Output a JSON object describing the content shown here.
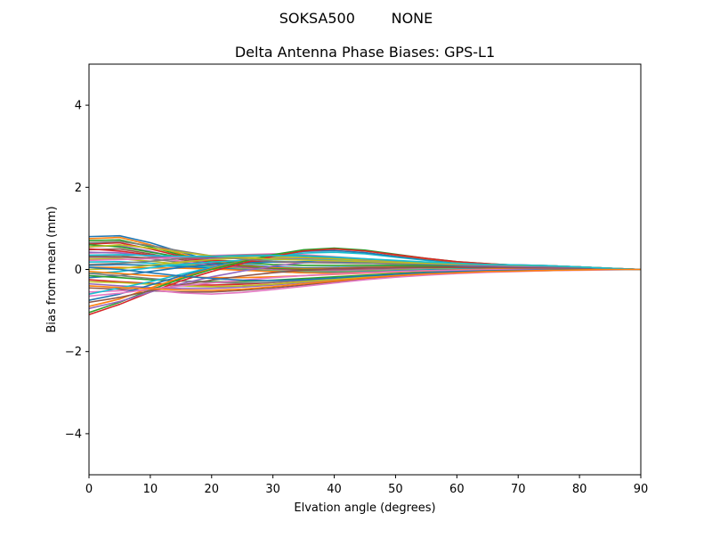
{
  "chart_data": {
    "type": "line",
    "suptitle": "SOKSA500        NONE",
    "title": "Delta Antenna Phase Biases: GPS-L1",
    "xlabel": "Elvation angle (degrees)",
    "ylabel": "Bias from mean (mm)",
    "xlim": [
      0,
      90
    ],
    "ylim": [
      -5,
      5
    ],
    "xticks": [
      0,
      10,
      20,
      30,
      40,
      50,
      60,
      70,
      80,
      90
    ],
    "yticks": [
      -4,
      -2,
      0,
      2,
      4
    ],
    "ytick_labels": [
      "−4",
      "−2",
      "0",
      "2",
      "4"
    ],
    "grid": false,
    "x": [
      0,
      5,
      10,
      15,
      20,
      25,
      30,
      35,
      40,
      45,
      50,
      55,
      60,
      65,
      70,
      75,
      80,
      85,
      90
    ],
    "colors": [
      "#1f77b4",
      "#ff7f0e",
      "#2ca02c",
      "#d62728",
      "#9467bd",
      "#8c564b",
      "#e377c2",
      "#7f7f7f",
      "#bcbd22",
      "#17becf"
    ],
    "series": [
      {
        "values": [
          0.8,
          0.82,
          0.65,
          0.42,
          0.22,
          0.12,
          0.06,
          0.04,
          0.05,
          0.06,
          0.07,
          0.08,
          0.09,
          0.1,
          0.1,
          0.09,
          0.06,
          0.03,
          0.0
        ]
      },
      {
        "values": [
          0.75,
          0.78,
          0.6,
          0.38,
          0.2,
          0.1,
          0.04,
          0.02,
          0.03,
          0.05,
          0.06,
          0.07,
          0.08,
          0.09,
          0.09,
          0.08,
          0.05,
          0.02,
          0.0
        ]
      },
      {
        "values": [
          0.7,
          0.72,
          0.55,
          0.35,
          0.18,
          0.08,
          0.02,
          0.0,
          0.01,
          0.03,
          0.05,
          0.06,
          0.07,
          0.08,
          0.08,
          0.07,
          0.05,
          0.02,
          0.0
        ]
      },
      {
        "values": [
          0.62,
          0.65,
          0.5,
          0.32,
          0.16,
          0.06,
          0.0,
          -0.02,
          -0.01,
          0.01,
          0.03,
          0.05,
          0.06,
          0.07,
          0.07,
          0.06,
          0.04,
          0.02,
          0.0
        ]
      },
      {
        "values": [
          0.55,
          0.58,
          0.44,
          0.28,
          0.14,
          0.05,
          -0.01,
          -0.03,
          -0.02,
          0.0,
          0.02,
          0.04,
          0.05,
          0.06,
          0.06,
          0.05,
          0.04,
          0.02,
          0.0
        ]
      },
      {
        "values": [
          0.48,
          0.5,
          0.38,
          0.24,
          0.12,
          0.04,
          -0.02,
          -0.04,
          -0.03,
          -0.01,
          0.01,
          0.03,
          0.04,
          0.05,
          0.05,
          0.05,
          0.03,
          0.01,
          0.0
        ]
      },
      {
        "values": [
          0.4,
          0.42,
          0.32,
          0.2,
          0.1,
          0.03,
          -0.02,
          -0.05,
          -0.04,
          -0.02,
          0.0,
          0.02,
          0.03,
          0.04,
          0.05,
          0.04,
          0.03,
          0.01,
          0.0
        ]
      },
      {
        "values": [
          0.32,
          0.34,
          0.26,
          0.17,
          0.08,
          0.02,
          -0.03,
          -0.05,
          -0.05,
          -0.03,
          -0.01,
          0.01,
          0.03,
          0.04,
          0.04,
          0.04,
          0.03,
          0.01,
          0.0
        ]
      },
      {
        "values": [
          0.25,
          0.26,
          0.2,
          0.13,
          0.06,
          0.01,
          -0.03,
          -0.06,
          -0.06,
          -0.04,
          -0.02,
          0.0,
          0.02,
          0.03,
          0.04,
          0.03,
          0.02,
          0.01,
          0.0
        ]
      },
      {
        "values": [
          0.18,
          0.19,
          0.15,
          0.1,
          0.05,
          0.0,
          -0.04,
          -0.07,
          -0.07,
          -0.05,
          -0.03,
          -0.01,
          0.01,
          0.02,
          0.03,
          0.03,
          0.02,
          0.01,
          0.0
        ]
      },
      {
        "values": [
          0.1,
          0.12,
          0.1,
          0.07,
          0.03,
          -0.01,
          -0.05,
          -0.08,
          -0.08,
          -0.06,
          -0.04,
          -0.02,
          0.0,
          0.02,
          0.03,
          0.03,
          0.02,
          0.01,
          0.0
        ]
      },
      {
        "values": [
          0.05,
          0.05,
          0.04,
          0.03,
          0.01,
          -0.02,
          -0.05,
          -0.08,
          -0.09,
          -0.07,
          -0.05,
          -0.03,
          -0.01,
          0.01,
          0.02,
          0.02,
          0.02,
          0.01,
          0.0
        ]
      },
      {
        "values": [
          0.6,
          0.55,
          0.42,
          0.3,
          0.22,
          0.16,
          0.12,
          0.1,
          0.1,
          0.1,
          0.1,
          0.1,
          0.1,
          0.09,
          0.08,
          0.07,
          0.05,
          0.02,
          0.0
        ]
      },
      {
        "values": [
          0.5,
          0.45,
          0.35,
          0.27,
          0.22,
          0.2,
          0.18,
          0.17,
          0.16,
          0.15,
          0.14,
          0.13,
          0.12,
          0.11,
          0.1,
          0.08,
          0.06,
          0.03,
          0.0
        ]
      },
      {
        "values": [
          0.42,
          0.4,
          0.32,
          0.28,
          0.27,
          0.28,
          0.28,
          0.26,
          0.24,
          0.21,
          0.18,
          0.15,
          0.13,
          0.12,
          0.1,
          0.09,
          0.06,
          0.03,
          0.0
        ]
      },
      {
        "values": [
          0.3,
          0.3,
          0.28,
          0.29,
          0.3,
          0.32,
          0.34,
          0.32,
          0.28,
          0.24,
          0.2,
          0.17,
          0.14,
          0.12,
          0.11,
          0.09,
          0.06,
          0.03,
          0.0
        ]
      },
      {
        "values": [
          0.22,
          0.24,
          0.26,
          0.3,
          0.34,
          0.36,
          0.38,
          0.36,
          0.31,
          0.26,
          0.21,
          0.17,
          0.14,
          0.12,
          0.11,
          0.09,
          0.06,
          0.03,
          0.0
        ]
      },
      {
        "values": [
          0.12,
          0.15,
          0.2,
          0.27,
          0.32,
          0.35,
          0.36,
          0.34,
          0.3,
          0.25,
          0.2,
          0.16,
          0.13,
          0.11,
          0.1,
          0.08,
          0.05,
          0.02,
          0.0
        ]
      },
      {
        "values": [
          0.0,
          0.02,
          0.1,
          0.18,
          0.24,
          0.28,
          0.3,
          0.29,
          0.26,
          0.22,
          0.18,
          0.15,
          0.12,
          0.1,
          0.09,
          0.07,
          0.05,
          0.02,
          0.0
        ]
      },
      {
        "values": [
          -0.1,
          -0.05,
          0.04,
          0.12,
          0.18,
          0.22,
          0.24,
          0.24,
          0.22,
          0.19,
          0.16,
          0.13,
          0.11,
          0.09,
          0.08,
          0.06,
          0.04,
          0.02,
          0.0
        ]
      },
      {
        "values": [
          -0.2,
          -0.15,
          -0.05,
          0.05,
          0.12,
          0.16,
          0.18,
          0.19,
          0.18,
          0.16,
          0.14,
          0.12,
          0.1,
          0.08,
          0.07,
          0.06,
          0.04,
          0.02,
          0.0
        ]
      },
      {
        "values": [
          -0.05,
          -0.1,
          -0.15,
          -0.18,
          -0.2,
          -0.2,
          -0.18,
          -0.15,
          -0.12,
          -0.09,
          -0.06,
          -0.04,
          -0.02,
          -0.01,
          0.0,
          0.0,
          0.0,
          0.0,
          0.0
        ]
      },
      {
        "values": [
          -0.15,
          -0.2,
          -0.25,
          -0.28,
          -0.3,
          -0.29,
          -0.26,
          -0.22,
          -0.18,
          -0.14,
          -0.1,
          -0.07,
          -0.05,
          -0.03,
          -0.02,
          -0.01,
          0.0,
          0.0,
          0.0
        ]
      },
      {
        "values": [
          -0.25,
          -0.3,
          -0.34,
          -0.37,
          -0.38,
          -0.36,
          -0.32,
          -0.27,
          -0.22,
          -0.17,
          -0.13,
          -0.09,
          -0.06,
          -0.04,
          -0.03,
          -0.02,
          -0.01,
          0.0,
          0.0
        ]
      },
      {
        "values": [
          -0.35,
          -0.4,
          -0.44,
          -0.46,
          -0.46,
          -0.43,
          -0.38,
          -0.32,
          -0.26,
          -0.2,
          -0.15,
          -0.11,
          -0.08,
          -0.05,
          -0.04,
          -0.02,
          -0.01,
          0.0,
          0.0
        ]
      },
      {
        "values": [
          -0.45,
          -0.48,
          -0.52,
          -0.55,
          -0.55,
          -0.51,
          -0.45,
          -0.38,
          -0.3,
          -0.23,
          -0.17,
          -0.12,
          -0.09,
          -0.06,
          -0.04,
          -0.03,
          -0.01,
          0.0,
          0.0
        ]
      },
      {
        "values": [
          -0.55,
          -0.52,
          -0.5,
          -0.57,
          -0.6,
          -0.56,
          -0.49,
          -0.41,
          -0.33,
          -0.25,
          -0.19,
          -0.14,
          -0.1,
          -0.07,
          -0.05,
          -0.03,
          -0.02,
          -0.01,
          0.0
        ]
      },
      {
        "values": [
          -0.1,
          -0.15,
          -0.22,
          -0.28,
          -0.32,
          -0.33,
          -0.31,
          -0.27,
          -0.22,
          -0.17,
          -0.12,
          -0.08,
          -0.05,
          -0.03,
          -0.02,
          -0.01,
          0.0,
          0.0,
          0.0
        ]
      },
      {
        "values": [
          -0.3,
          -0.32,
          -0.36,
          -0.4,
          -0.42,
          -0.4,
          -0.36,
          -0.3,
          -0.24,
          -0.18,
          -0.13,
          -0.09,
          -0.06,
          -0.04,
          -0.03,
          -0.02,
          -0.01,
          0.0,
          0.0
        ]
      },
      {
        "values": [
          -0.6,
          -0.45,
          -0.3,
          -0.12,
          0.05,
          0.2,
          0.32,
          0.4,
          0.42,
          0.38,
          0.3,
          0.22,
          0.16,
          0.12,
          0.09,
          0.07,
          0.05,
          0.02,
          0.0
        ]
      },
      {
        "values": [
          -0.75,
          -0.6,
          -0.38,
          -0.16,
          0.03,
          0.2,
          0.34,
          0.44,
          0.46,
          0.41,
          0.32,
          0.24,
          0.17,
          0.12,
          0.09,
          0.07,
          0.05,
          0.02,
          0.0
        ]
      },
      {
        "values": [
          -0.9,
          -0.72,
          -0.45,
          -0.2,
          0.02,
          0.2,
          0.35,
          0.46,
          0.5,
          0.45,
          0.35,
          0.26,
          0.18,
          0.13,
          0.1,
          0.07,
          0.05,
          0.02,
          0.0
        ]
      },
      {
        "values": [
          -1.05,
          -0.8,
          -0.5,
          -0.23,
          0.0,
          0.19,
          0.36,
          0.48,
          0.52,
          0.47,
          0.37,
          0.27,
          0.19,
          0.14,
          0.1,
          0.08,
          0.05,
          0.02,
          0.0
        ]
      },
      {
        "values": [
          -1.1,
          -0.85,
          -0.55,
          -0.28,
          -0.05,
          0.15,
          0.32,
          0.45,
          0.5,
          0.45,
          0.36,
          0.27,
          0.19,
          0.14,
          0.1,
          0.08,
          0.05,
          0.02,
          0.0
        ]
      },
      {
        "values": [
          -0.95,
          -0.78,
          -0.55,
          -0.35,
          -0.18,
          -0.04,
          0.08,
          0.16,
          0.2,
          0.2,
          0.17,
          0.14,
          0.11,
          0.09,
          0.07,
          0.05,
          0.04,
          0.02,
          0.0
        ]
      },
      {
        "values": [
          -0.8,
          -0.68,
          -0.52,
          -0.38,
          -0.26,
          -0.16,
          -0.08,
          -0.02,
          0.02,
          0.04,
          0.05,
          0.05,
          0.05,
          0.05,
          0.04,
          0.03,
          0.02,
          0.01,
          0.0
        ]
      },
      {
        "values": [
          -0.65,
          -0.58,
          -0.48,
          -0.4,
          -0.33,
          -0.26,
          -0.2,
          -0.15,
          -0.11,
          -0.08,
          -0.05,
          -0.03,
          -0.02,
          -0.01,
          0.0,
          0.0,
          0.0,
          0.0,
          0.0
        ]
      },
      {
        "values": [
          0.65,
          0.68,
          0.58,
          0.45,
          0.33,
          0.25,
          0.2,
          0.17,
          0.16,
          0.15,
          0.14,
          0.13,
          0.12,
          0.11,
          0.1,
          0.08,
          0.06,
          0.03,
          0.0
        ]
      },
      {
        "values": [
          0.55,
          0.6,
          0.52,
          0.42,
          0.33,
          0.28,
          0.25,
          0.23,
          0.21,
          0.19,
          0.17,
          0.15,
          0.13,
          0.12,
          0.1,
          0.09,
          0.06,
          0.03,
          0.0
        ]
      },
      {
        "values": [
          0.35,
          0.36,
          0.34,
          0.32,
          0.32,
          0.33,
          0.34,
          0.33,
          0.3,
          0.26,
          0.22,
          0.18,
          0.15,
          0.12,
          0.11,
          0.09,
          0.06,
          0.03,
          0.0
        ]
      },
      {
        "values": [
          0.05,
          0.0,
          -0.08,
          -0.16,
          -0.22,
          -0.26,
          -0.27,
          -0.25,
          -0.21,
          -0.16,
          -0.12,
          -0.08,
          -0.05,
          -0.03,
          -0.02,
          -0.01,
          0.0,
          0.0,
          0.0
        ]
      },
      {
        "values": [
          -0.4,
          -0.44,
          -0.47,
          -0.5,
          -0.51,
          -0.48,
          -0.42,
          -0.35,
          -0.28,
          -0.21,
          -0.15,
          -0.11,
          -0.08,
          -0.05,
          -0.04,
          -0.02,
          -0.01,
          0.0,
          0.0
        ]
      }
    ]
  }
}
